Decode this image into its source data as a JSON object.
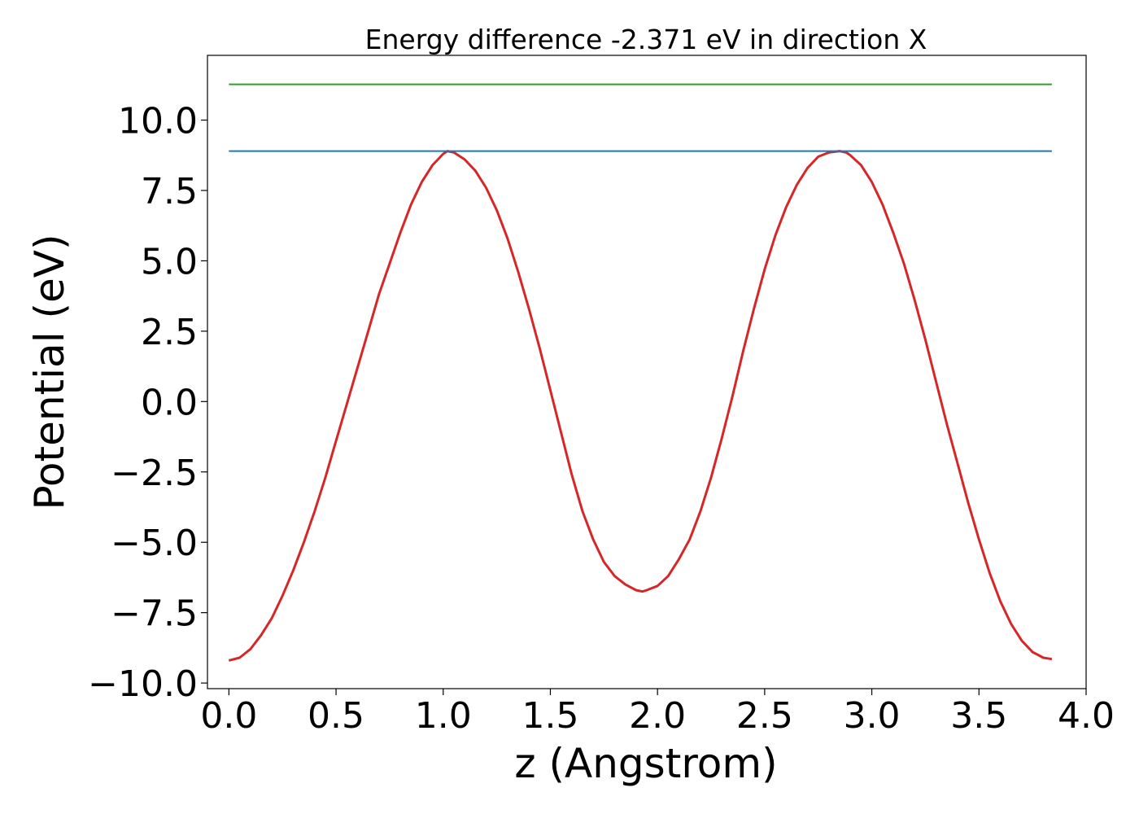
{
  "chart_data": {
    "type": "line",
    "title": "Energy difference -2.371 eV in direction X",
    "xlabel": "z (Angstrom)",
    "ylabel": "Potential (eV)",
    "xlim": [
      -0.1,
      4.0
    ],
    "ylim": [
      -10.2,
      12.3
    ],
    "xticks": [
      0.0,
      0.5,
      1.0,
      1.5,
      2.0,
      2.5,
      3.0,
      3.5,
      4.0
    ],
    "xtick_labels": [
      "0.0",
      "0.5",
      "1.0",
      "1.5",
      "2.0",
      "2.5",
      "3.0",
      "3.5",
      "4.0"
    ],
    "yticks": [
      -10.0,
      -7.5,
      -5.0,
      -2.5,
      0.0,
      2.5,
      5.0,
      7.5,
      10.0
    ],
    "ytick_labels": [
      "−10.0",
      "−7.5",
      "−5.0",
      "−2.5",
      "0.0",
      "2.5",
      "5.0",
      "7.5",
      "10.0"
    ],
    "grid": false,
    "series": [
      {
        "color": "#d62728",
        "style": "curve",
        "x": [
          0.0,
          0.05,
          0.1,
          0.15,
          0.2,
          0.25,
          0.3,
          0.35,
          0.4,
          0.45,
          0.5,
          0.55,
          0.6,
          0.65,
          0.7,
          0.75,
          0.8,
          0.85,
          0.9,
          0.95,
          1.0,
          1.02,
          1.05,
          1.1,
          1.15,
          1.2,
          1.25,
          1.3,
          1.35,
          1.4,
          1.45,
          1.5,
          1.55,
          1.6,
          1.65,
          1.7,
          1.75,
          1.8,
          1.85,
          1.9,
          1.93,
          1.95,
          2.0,
          2.05,
          2.1,
          2.15,
          2.2,
          2.25,
          2.3,
          2.35,
          2.4,
          2.45,
          2.5,
          2.55,
          2.6,
          2.65,
          2.7,
          2.75,
          2.8,
          2.85,
          2.88,
          2.9,
          2.95,
          3.0,
          3.05,
          3.1,
          3.15,
          3.2,
          3.25,
          3.3,
          3.35,
          3.4,
          3.45,
          3.5,
          3.55,
          3.6,
          3.65,
          3.7,
          3.75,
          3.8,
          3.84
        ],
        "y": [
          -9.2,
          -9.1,
          -8.8,
          -8.3,
          -7.7,
          -6.9,
          -6.0,
          -5.0,
          -3.9,
          -2.7,
          -1.4,
          -0.1,
          1.2,
          2.5,
          3.8,
          4.9,
          6.0,
          7.0,
          7.8,
          8.4,
          8.8,
          8.9,
          8.85,
          8.6,
          8.2,
          7.6,
          6.8,
          5.8,
          4.6,
          3.3,
          1.9,
          0.4,
          -1.1,
          -2.6,
          -3.9,
          -4.9,
          -5.7,
          -6.2,
          -6.5,
          -6.7,
          -6.75,
          -6.7,
          -6.55,
          -6.2,
          -5.6,
          -4.9,
          -3.9,
          -2.7,
          -1.3,
          0.2,
          1.8,
          3.3,
          4.7,
          5.9,
          6.9,
          7.7,
          8.3,
          8.7,
          8.85,
          8.9,
          8.85,
          8.75,
          8.4,
          7.8,
          7.0,
          6.0,
          4.9,
          3.6,
          2.2,
          0.7,
          -0.8,
          -2.2,
          -3.6,
          -4.9,
          -6.1,
          -7.1,
          -7.9,
          -8.5,
          -8.9,
          -9.1,
          -9.15
        ]
      },
      {
        "color": "#1f77b4",
        "style": "flat",
        "x": [
          0.0,
          3.84
        ],
        "y": [
          8.9,
          8.9
        ]
      },
      {
        "color": "#2ca02c",
        "style": "flat",
        "x": [
          0.0,
          3.84
        ],
        "y": [
          11.27,
          11.27
        ]
      }
    ]
  }
}
